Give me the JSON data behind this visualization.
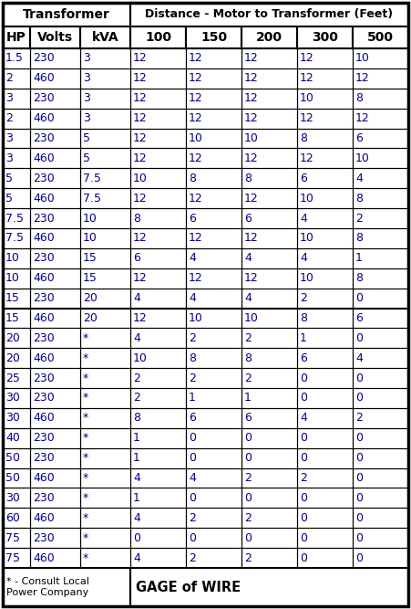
{
  "title_transformer": "Transformer",
  "title_distance": "Distance - Motor to Transformer (Feet)",
  "col_headers": [
    "HP",
    "Volts",
    "kVA",
    "100",
    "150",
    "200",
    "300",
    "500"
  ],
  "rows": [
    [
      "1.5",
      "230",
      "3",
      "12",
      "12",
      "12",
      "12",
      "10"
    ],
    [
      "2",
      "460",
      "3",
      "12",
      "12",
      "12",
      "12",
      "12"
    ],
    [
      "3",
      "230",
      "3",
      "12",
      "12",
      "12",
      "10",
      "8"
    ],
    [
      "2",
      "460",
      "3",
      "12",
      "12",
      "12",
      "12",
      "12"
    ],
    [
      "3",
      "230",
      "5",
      "12",
      "10",
      "10",
      "8",
      "6"
    ],
    [
      "3",
      "460",
      "5",
      "12",
      "12",
      "12",
      "12",
      "10"
    ],
    [
      "5",
      "230",
      "7.5",
      "10",
      "8",
      "8",
      "6",
      "4"
    ],
    [
      "5",
      "460",
      "7.5",
      "12",
      "12",
      "12",
      "10",
      "8"
    ],
    [
      "7.5",
      "230",
      "10",
      "8",
      "6",
      "6",
      "4",
      "2"
    ],
    [
      "7.5",
      "460",
      "10",
      "12",
      "12",
      "12",
      "10",
      "8"
    ],
    [
      "10",
      "230",
      "15",
      "6",
      "4",
      "4",
      "4",
      "1"
    ],
    [
      "10",
      "460",
      "15",
      "12",
      "12",
      "12",
      "10",
      "8"
    ],
    [
      "15",
      "230",
      "20",
      "4",
      "4",
      "4",
      "2",
      "0"
    ],
    [
      "15",
      "460",
      "20",
      "12",
      "10",
      "10",
      "8",
      "6"
    ],
    [
      "20",
      "230",
      "*",
      "4",
      "2",
      "2",
      "1",
      "0"
    ],
    [
      "20",
      "460",
      "*",
      "10",
      "8",
      "8",
      "6",
      "4"
    ],
    [
      "25",
      "230",
      "*",
      "2",
      "2",
      "2",
      "0",
      "0"
    ],
    [
      "30",
      "230",
      "*",
      "2",
      "1",
      "1",
      "0",
      "0"
    ],
    [
      "30",
      "460",
      "*",
      "8",
      "6",
      "6",
      "4",
      "2"
    ],
    [
      "40",
      "230",
      "*",
      "1",
      "0",
      "0",
      "0",
      "0"
    ],
    [
      "50",
      "230",
      "*",
      "1",
      "0",
      "0",
      "0",
      "0"
    ],
    [
      "50",
      "460",
      "*",
      "4",
      "4",
      "2",
      "2",
      "0"
    ],
    [
      "30",
      "230",
      "*",
      "1",
      "0",
      "0",
      "0",
      "0"
    ],
    [
      "60",
      "460",
      "*",
      "4",
      "2",
      "2",
      "0",
      "0"
    ],
    [
      "75",
      "230",
      "*",
      "0",
      "0",
      "0",
      "0",
      "0"
    ],
    [
      "75",
      "460",
      "*",
      "4",
      "2",
      "2",
      "0",
      "0"
    ]
  ],
  "footer_left": "* - Consult Local\nPower Company",
  "footer_right": "GAGE of WIRE",
  "border_color": "#000000",
  "text_color_data": "#00008B",
  "text_color_header": "#000000",
  "figsize": [
    4.51,
    6.67
  ],
  "dpi": 100
}
